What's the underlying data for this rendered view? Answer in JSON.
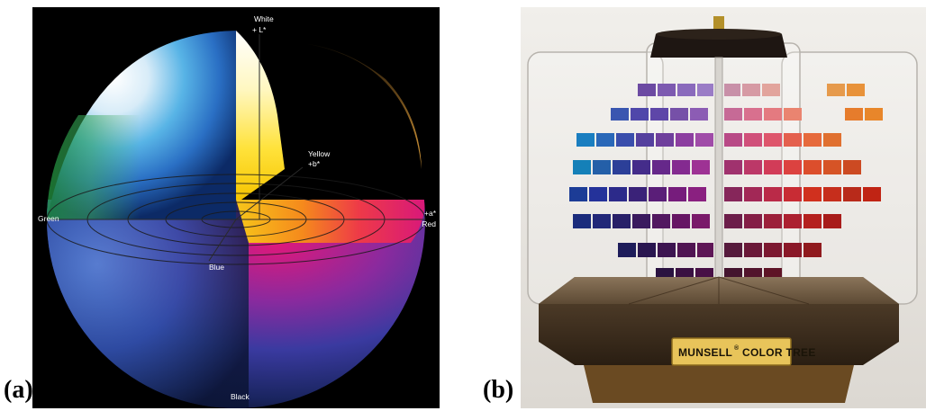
{
  "panels": {
    "a": {
      "label": "(a)",
      "axis_labels": {
        "white": "White",
        "plus_l": "+ L*",
        "yellow": "Yellow",
        "plus_b": "+b*",
        "green": "Green",
        "plus_a": "+a*",
        "red": "Red",
        "blue": "Blue",
        "black": "Black"
      }
    },
    "b": {
      "label": "(b)",
      "plaque": {
        "brand": "MUNSELL",
        "mark": "®",
        "product": "COLOR TREE"
      }
    }
  }
}
